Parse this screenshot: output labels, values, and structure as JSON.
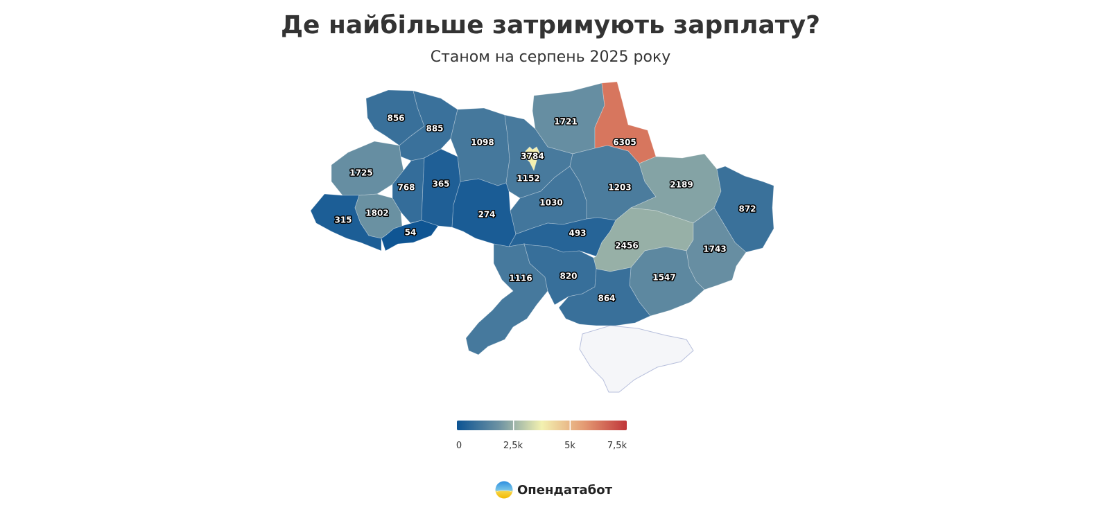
{
  "title": "Де найбільше затримують зарплату?",
  "subtitle": "Станом на серпень 2025 року",
  "brand": {
    "name": "Опендатабот",
    "logo_icon": "opendatabot-logo-icon"
  },
  "chart_data": {
    "type": "choropleth",
    "title": "Де найбільше затримують зарплату?",
    "subtitle": "Станом на серпень 2025 року",
    "color_scale": {
      "min": 0,
      "max": 7500,
      "stops": [
        "#0c5393",
        "#6e93a3",
        "#f3f1b0",
        "#e49a73",
        "#c0363a"
      ],
      "ticks": [
        0,
        2500,
        5000,
        7500
      ],
      "tick_labels": [
        "0",
        "2,5k",
        "5k",
        "7,5k"
      ]
    },
    "no_data_color": "#f5f6f9",
    "regions": [
      {
        "id": "volyn",
        "value": 856
      },
      {
        "id": "rivne",
        "value": 885
      },
      {
        "id": "zhytomyr",
        "value": 1098
      },
      {
        "id": "chernihiv",
        "value": 1721
      },
      {
        "id": "sumy",
        "value": 6305
      },
      {
        "id": "kyiv-city",
        "value": 3784
      },
      {
        "id": "kyiv-oblast",
        "value": 1152
      },
      {
        "id": "lviv",
        "value": 1725
      },
      {
        "id": "ternopil",
        "value": 768
      },
      {
        "id": "khmelnytskyi",
        "value": 365
      },
      {
        "id": "vinnytsia",
        "value": 274
      },
      {
        "id": "cherkasy",
        "value": 1030
      },
      {
        "id": "poltava",
        "value": 1203
      },
      {
        "id": "kharkiv",
        "value": 2189
      },
      {
        "id": "luhansk",
        "value": 872
      },
      {
        "id": "zakarpattia",
        "value": 315
      },
      {
        "id": "ivano-frankivsk",
        "value": 1802
      },
      {
        "id": "chernivtsi",
        "value": 54
      },
      {
        "id": "kirovohrad",
        "value": 493
      },
      {
        "id": "dnipropetrovsk",
        "value": 2456
      },
      {
        "id": "donetsk",
        "value": 1743
      },
      {
        "id": "zaporizhzhia",
        "value": 1547
      },
      {
        "id": "odesa",
        "value": 1116
      },
      {
        "id": "mykolaiv",
        "value": 820
      },
      {
        "id": "kherson",
        "value": 864
      }
    ]
  }
}
